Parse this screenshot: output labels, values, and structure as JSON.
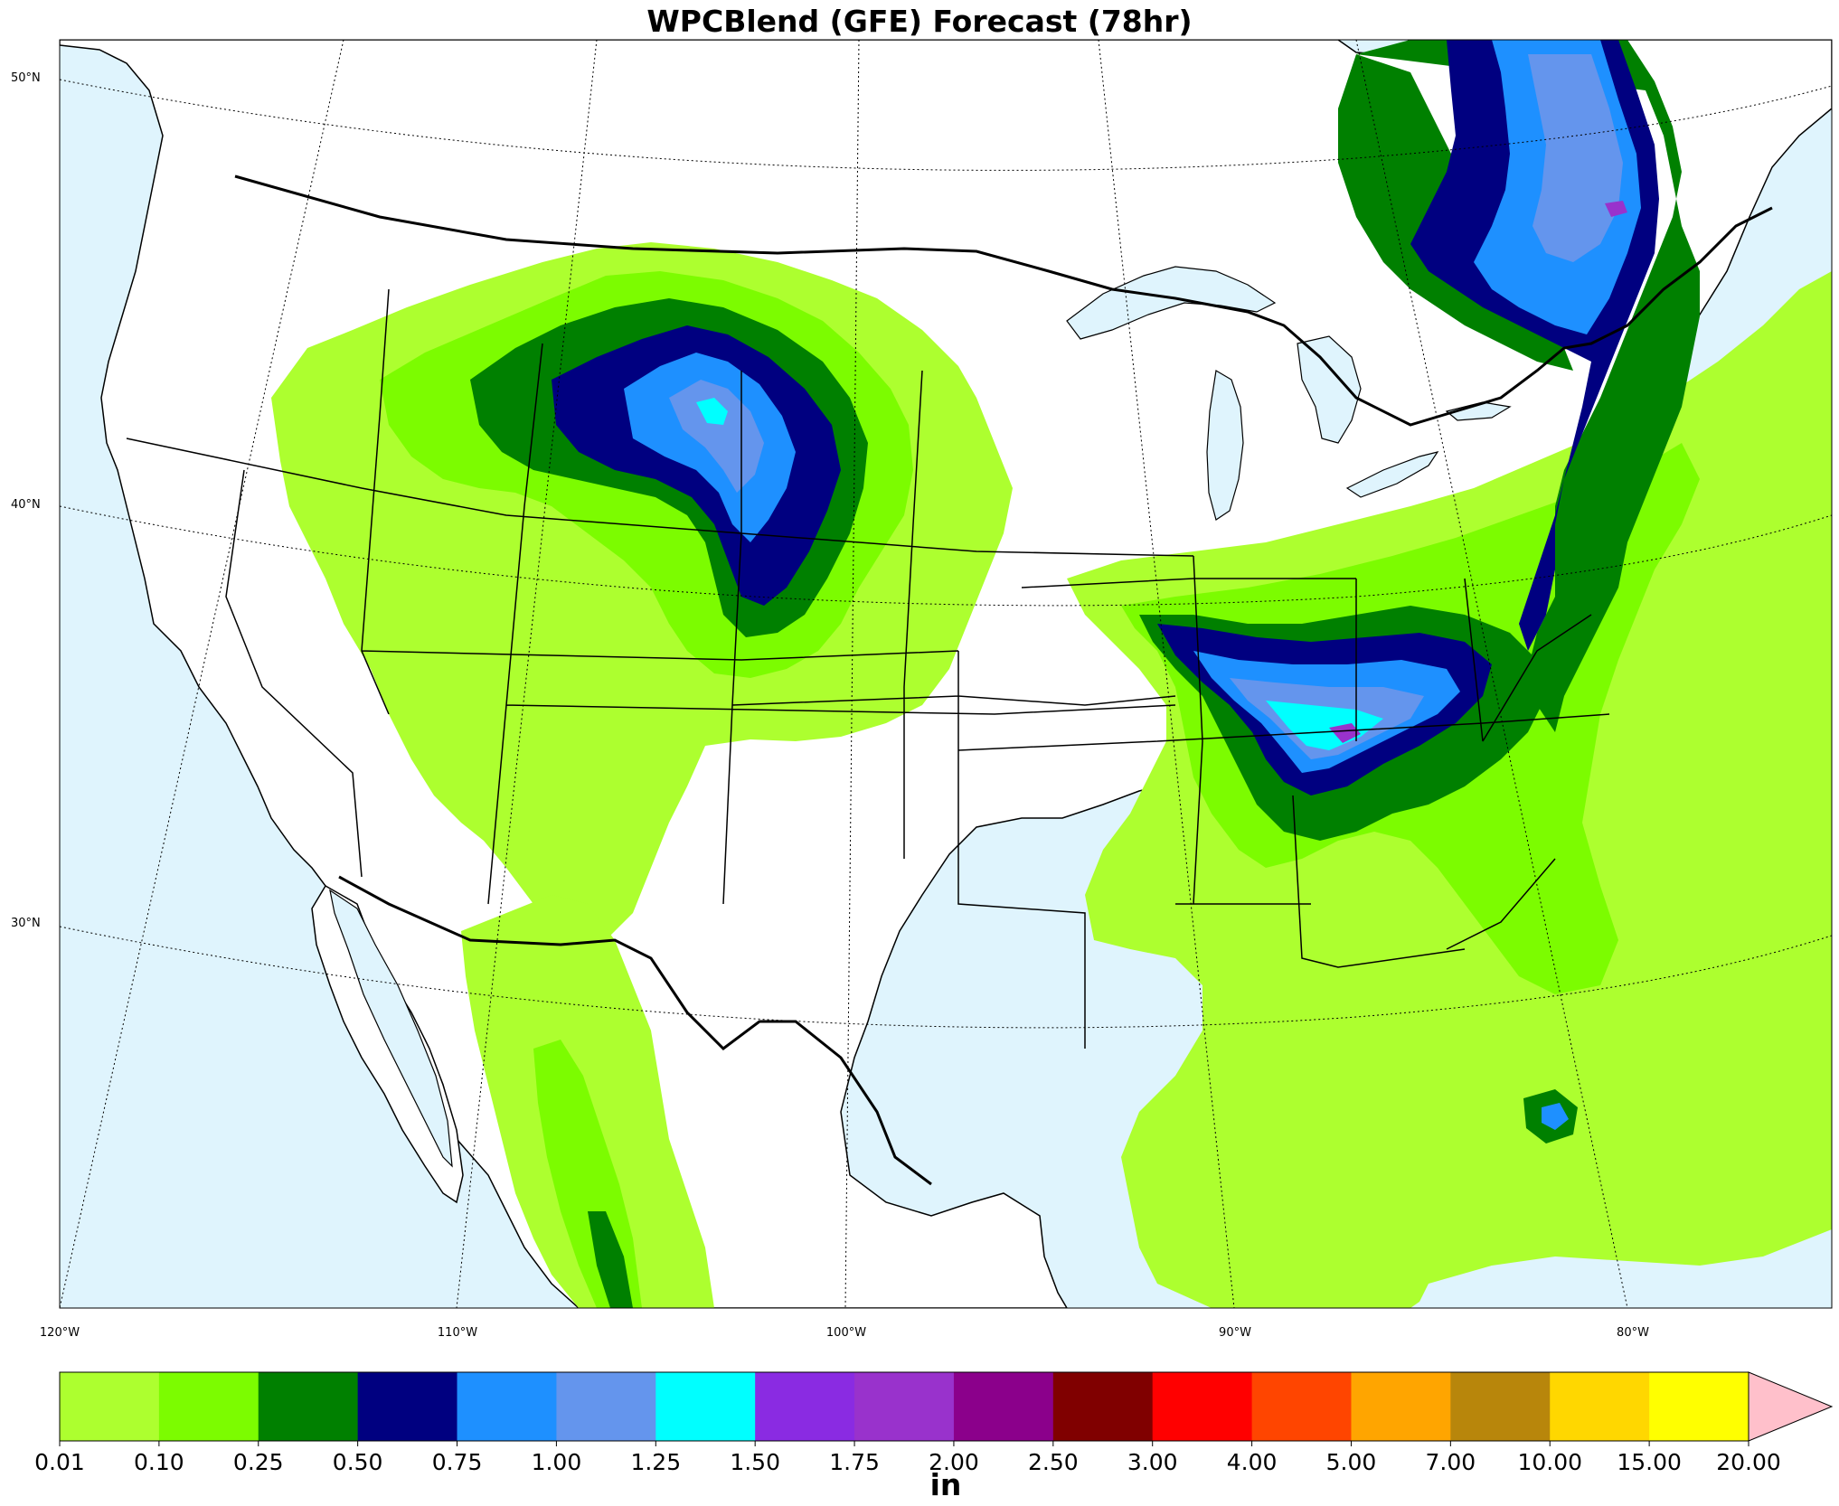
{
  "title": "WPCBlend (GFE) Forecast (78hr)",
  "latitude_labels": [
    "50°N",
    "40°N",
    "30°N"
  ],
  "longitude_labels": [
    "120°W",
    "110°W",
    "100°W",
    "90°W",
    "80°W"
  ],
  "colorbar": {
    "unit": "in",
    "ticks": [
      "0.01",
      "0.10",
      "0.25",
      "0.50",
      "0.75",
      "1.00",
      "1.25",
      "1.50",
      "1.75",
      "2.00",
      "2.50",
      "3.00",
      "4.00",
      "5.00",
      "7.00",
      "10.00",
      "15.00",
      "20.00"
    ],
    "colors": [
      "#adff2f",
      "#7cfc00",
      "#008000",
      "#000080",
      "#1e90ff",
      "#6495ed",
      "#00ffff",
      "#8a2be2",
      "#9932cc",
      "#8b008b",
      "#800000",
      "#ff0000",
      "#ff4500",
      "#ffa500",
      "#b8860b",
      "#ffd700",
      "#ffff00"
    ],
    "extend_color": "#ffc0cb"
  },
  "colors": {
    "ocean": "#dff4fd",
    "land": "#ffffff"
  }
}
